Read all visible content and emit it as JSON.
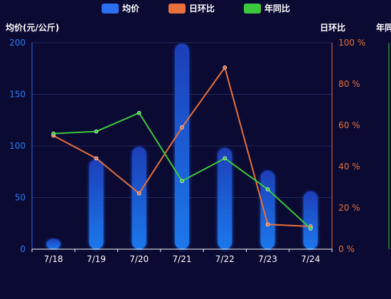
{
  "chart_data": {
    "type": "bar",
    "categories": [
      "7/18",
      "7/19",
      "7/20",
      "7/21",
      "7/22",
      "7/23",
      "7/24"
    ],
    "legend": [
      {
        "name": "均价",
        "color": "#2a6ff0"
      },
      {
        "name": "日环比",
        "color": "#e8703a"
      },
      {
        "name": "年同比",
        "color": "#3cc83c"
      }
    ],
    "axes": {
      "left": {
        "label": "均价(元/公斤)",
        "ticks": [
          "0",
          "50",
          "100",
          "150",
          "200"
        ],
        "ylim": [
          0,
          200
        ]
      },
      "right": {
        "label": "日环比",
        "ticks": [
          "0 %",
          "20 %",
          "40 %",
          "60 %",
          "80 %",
          "100 %"
        ],
        "ylim": [
          0,
          100
        ]
      },
      "right2_label": "年同比"
    },
    "series": [
      {
        "name": "均价",
        "type": "bar",
        "axis": "left",
        "values": [
          10,
          87,
          99,
          199,
          98,
          76,
          56
        ],
        "color": "#2a6ff0"
      },
      {
        "name": "日环比",
        "type": "line",
        "axis": "right",
        "values": [
          55,
          44,
          27,
          59,
          88,
          12,
          11
        ],
        "color": "#e8703a"
      },
      {
        "name": "年同比",
        "type": "line",
        "axis": "right",
        "values": [
          56,
          57,
          66,
          33,
          44,
          29,
          10
        ],
        "color": "#3cc83c"
      }
    ],
    "grid": true
  }
}
